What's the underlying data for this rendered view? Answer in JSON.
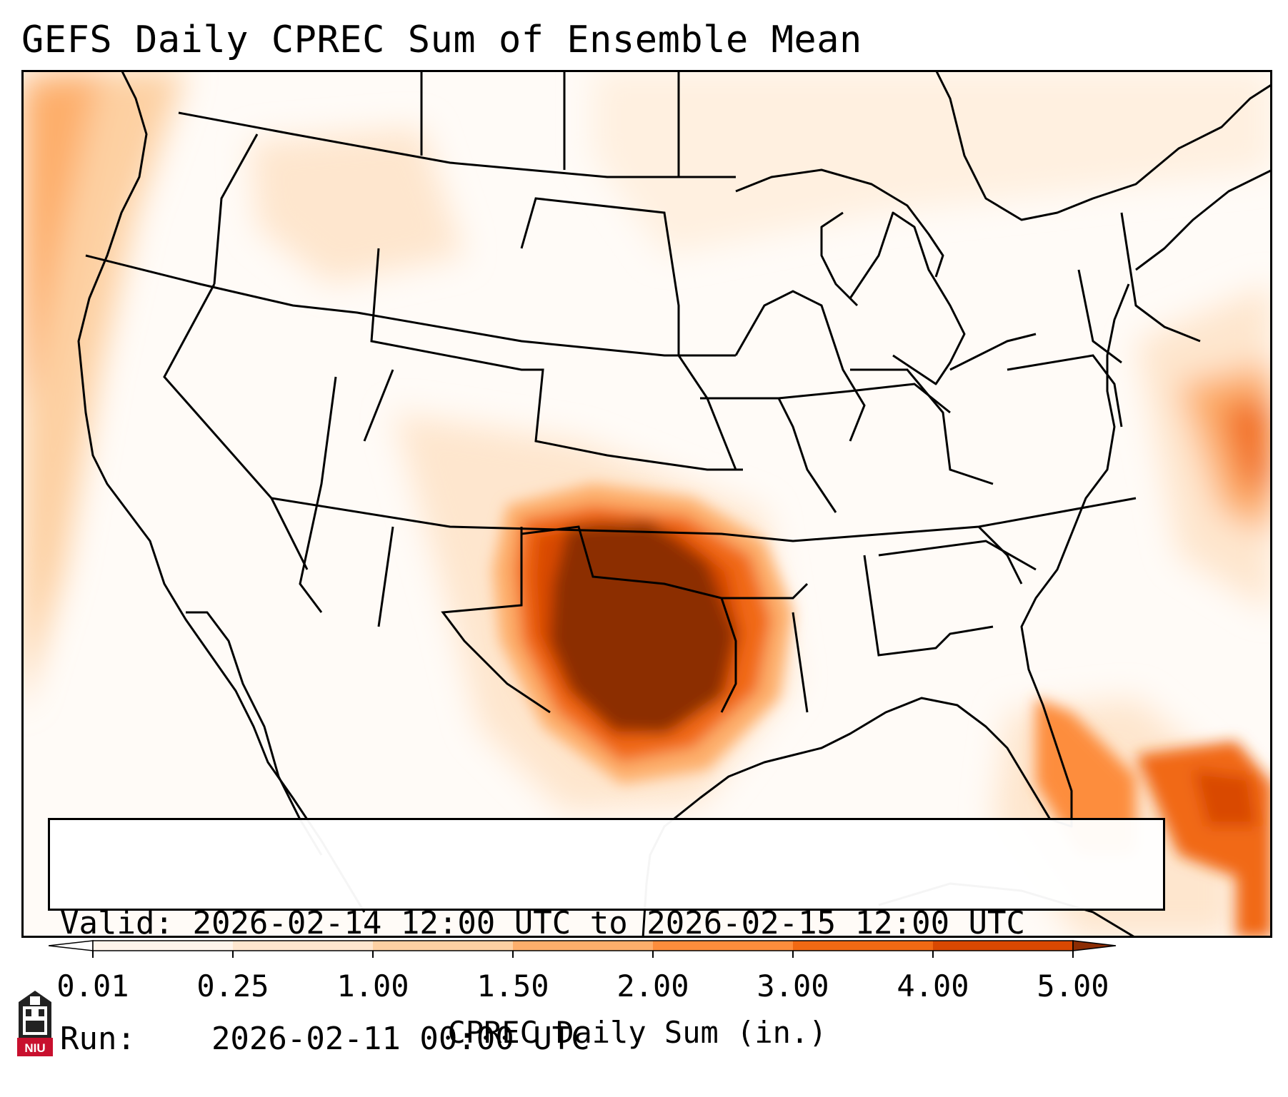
{
  "title": "GEFS Daily CPREC Sum of Ensemble Mean",
  "info": {
    "valid_label": "Valid:",
    "valid_value": "2026-02-14 12:00 UTC to 2026-02-15 12:00 UTC",
    "run_label": "Run:",
    "run_value": "2026-02-11 00:00 UTC"
  },
  "colorbar": {
    "label": "CPREC Daily Sum (in.)",
    "ticks": [
      "0.01",
      "0.25",
      "1.00",
      "1.50",
      "2.00",
      "3.00",
      "4.00",
      "5.00"
    ],
    "colors": [
      "#fff5eb",
      "#fee6ce",
      "#fdd0a2",
      "#fdae6b",
      "#fd8d3c",
      "#f16913",
      "#d94801",
      "#8c2d04"
    ]
  },
  "logo": {
    "text": "NIU",
    "icon": "niu-tower-logo",
    "color": "#c8102e"
  }
}
